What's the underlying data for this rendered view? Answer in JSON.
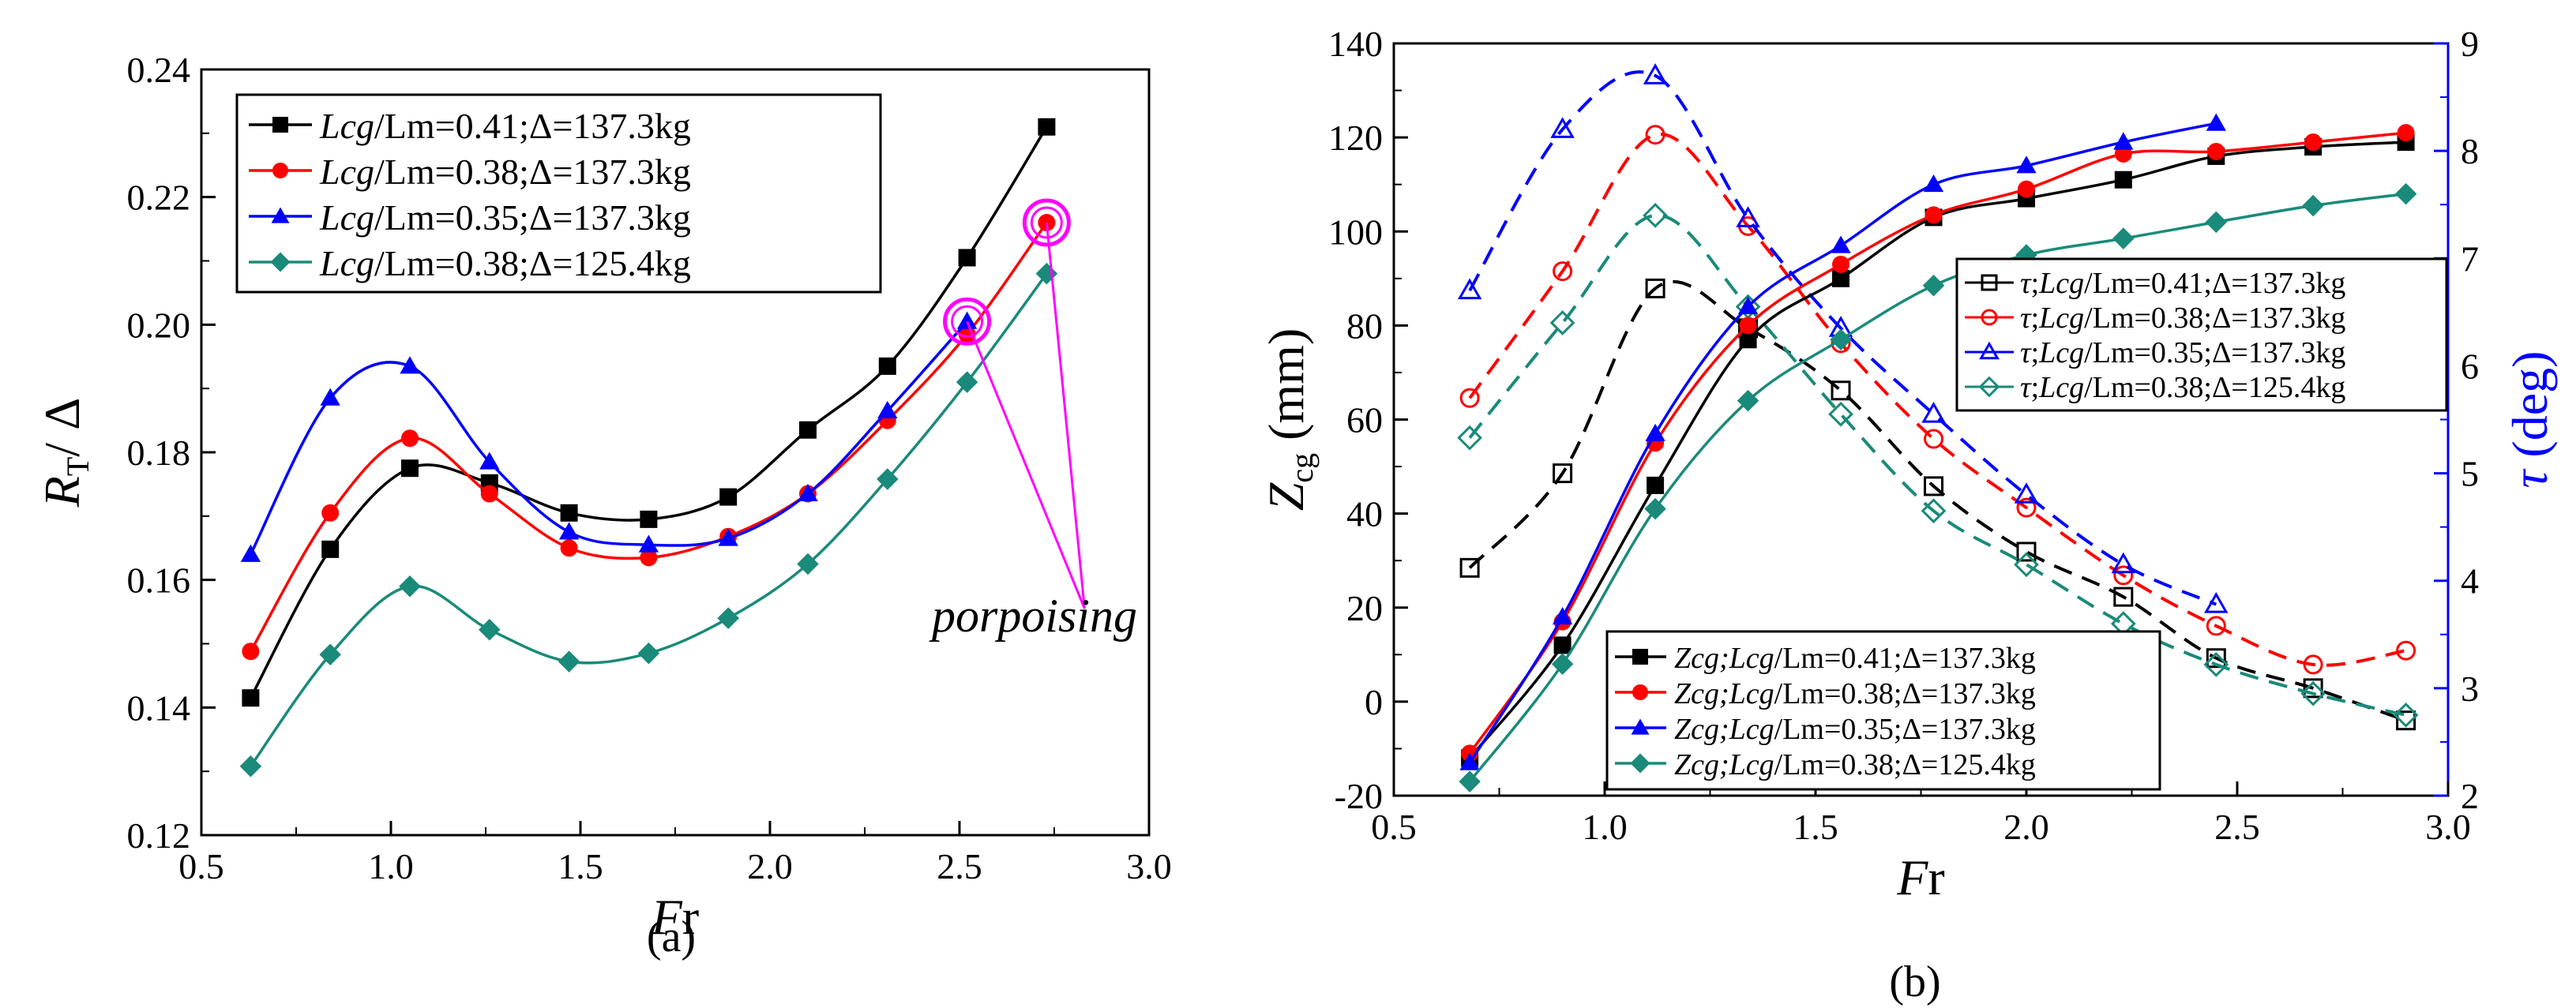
{
  "captions": {
    "a": "(a)",
    "b": "(b)"
  },
  "annotation": {
    "text": "porpoising",
    "color": "#ff00ff"
  },
  "colors": {
    "black": "#000000",
    "red": "#ff0000",
    "blue": "#0000ff",
    "teal": "#1a8a7a",
    "magenta": "#ff00ff"
  },
  "chart_data": [
    {
      "id": "a",
      "type": "line",
      "xlabel": {
        "italic": "F",
        "rest": "r"
      },
      "ylabel": {
        "italic": "R",
        "sub": "T",
        "rest": "/ Δ"
      },
      "xlim": [
        0.5,
        3.0
      ],
      "ylim": [
        0.12,
        0.24
      ],
      "xticks": [
        "0.5",
        "1.0",
        "1.5",
        "2.0",
        "2.5",
        "3.0"
      ],
      "yticks": [
        "0.12",
        "0.14",
        "0.16",
        "0.18",
        "0.20",
        "0.22",
        "0.24"
      ],
      "legend_position": "top-left",
      "series": [
        {
          "name": "Lcg/Lm=0.41;Δ=137.3kg",
          "label": {
            "italic": "Lcg",
            "rest": "/Lm=0.41;Δ=137.3kg"
          },
          "color": "#000000",
          "marker": "square",
          "x": [
            0.63,
            0.84,
            1.05,
            1.26,
            1.47,
            1.68,
            1.89,
            2.1,
            2.31,
            2.52,
            2.73
          ],
          "y": [
            0.1415,
            0.1648,
            0.1775,
            0.1752,
            0.1705,
            0.1695,
            0.173,
            0.1835,
            0.1935,
            0.2105,
            0.231
          ]
        },
        {
          "name": "Lcg/Lm=0.38;Δ=137.3kg",
          "label": {
            "italic": "Lcg",
            "rest": "/Lm=0.38;Δ=137.3kg"
          },
          "color": "#ff0000",
          "marker": "circle",
          "x": [
            0.63,
            0.84,
            1.05,
            1.26,
            1.47,
            1.68,
            1.89,
            2.1,
            2.31,
            2.52,
            2.73
          ],
          "y": [
            0.1488,
            0.1705,
            0.1822,
            0.1735,
            0.165,
            0.1635,
            0.1668,
            0.1735,
            0.185,
            0.1985,
            0.216
          ]
        },
        {
          "name": "Lcg/Lm=0.35;Δ=137.3kg",
          "label": {
            "italic": "Lcg",
            "rest": "/Lm=0.35;Δ=137.3kg"
          },
          "color": "#0000ff",
          "marker": "triangle",
          "x": [
            0.63,
            0.84,
            1.05,
            1.26,
            1.47,
            1.68,
            1.89,
            2.1,
            2.31,
            2.52
          ],
          "y": [
            0.164,
            0.1885,
            0.1935,
            0.1785,
            0.1675,
            0.1655,
            0.1665,
            0.1735,
            0.1865,
            0.2005
          ]
        },
        {
          "name": "Lcg/Lm=0.38;Δ=125.4kg",
          "label": {
            "italic": "Lcg",
            "rest": "/Lm=0.38;Δ=125.4kg"
          },
          "color": "#1a8a7a",
          "marker": "diamond",
          "x": [
            0.63,
            0.84,
            1.05,
            1.26,
            1.47,
            1.68,
            1.89,
            2.1,
            2.31,
            2.52,
            2.73
          ],
          "y": [
            0.1308,
            0.1483,
            0.159,
            0.1522,
            0.1472,
            0.1485,
            0.154,
            0.1625,
            0.1758,
            0.191,
            0.208
          ]
        }
      ],
      "porpoising_points": [
        {
          "x": 2.52,
          "y": 0.2005
        },
        {
          "x": 2.73,
          "y": 0.216
        }
      ],
      "annotation_anchor": {
        "x": 2.83,
        "y": 0.1555
      }
    },
    {
      "id": "b",
      "type": "line",
      "xlabel": {
        "italic": "F",
        "rest": "r"
      },
      "ylabel_left": {
        "italic": "Z",
        "sub": "cg",
        "rest": " (mm)"
      },
      "ylabel_right": {
        "italic": "τ",
        "rest": " (deg)"
      },
      "xlim": [
        0.5,
        3.0
      ],
      "ylim_left": [
        -20,
        140
      ],
      "ylim_right": [
        2,
        9
      ],
      "xticks": [
        "0.5",
        "1.0",
        "1.5",
        "2.0",
        "2.5",
        "3.0"
      ],
      "yticks_left": [
        "-20",
        "0",
        "20",
        "40",
        "60",
        "80",
        "100",
        "120",
        "140"
      ],
      "yticks_right": [
        "2",
        "3",
        "4",
        "5",
        "6",
        "7",
        "8",
        "9"
      ],
      "legend_tau_position": "right-middle",
      "legend_zcg_position": "bottom-center",
      "series_zcg": [
        {
          "name": "Zcg;Lcg/Lm=0.41;Δ=137.3kg",
          "label": {
            "pre": "Zcg;",
            "italic": "Lcg",
            "rest": "/Lm=0.41;Δ=137.3kg"
          },
          "color": "#000000",
          "marker": "square",
          "x": [
            0.68,
            0.9,
            1.12,
            1.34,
            1.56,
            1.78,
            2.0,
            2.23,
            2.45,
            2.68,
            2.9
          ],
          "y": [
            -12,
            12,
            46,
            77,
            90,
            103,
            107,
            111,
            116,
            118,
            119
          ]
        },
        {
          "name": "Zcg;Lcg/Lm=0.38;Δ=137.3kg",
          "label": {
            "pre": "Zcg;",
            "italic": "Lcg",
            "rest": "/Lm=0.38;Δ=137.3kg"
          },
          "color": "#ff0000",
          "marker": "circle",
          "x": [
            0.68,
            0.9,
            1.12,
            1.34,
            1.56,
            1.78,
            2.0,
            2.23,
            2.45,
            2.68,
            2.9
          ],
          "y": [
            -11,
            17,
            55,
            80,
            93,
            103.5,
            109,
            116.5,
            117,
            119,
            121
          ]
        },
        {
          "name": "Zcg;Lcg/Lm=0.35;Δ=137.3kg",
          "label": {
            "pre": "Zcg;",
            "italic": "Lcg",
            "rest": "/Lm=0.35;Δ=137.3kg"
          },
          "color": "#0000ff",
          "marker": "triangle",
          "x": [
            0.68,
            0.9,
            1.12,
            1.34,
            1.56,
            1.78,
            2.0,
            2.23,
            2.45
          ],
          "y": [
            -13,
            18,
            57,
            84,
            97,
            110,
            114,
            119,
            123
          ]
        },
        {
          "name": "Zcg;Lcg/Lm=0.38;Δ=125.4kg",
          "label": {
            "pre": "Zcg;",
            "italic": "Lcg",
            "rest": "/Lm=0.38;Δ=125.4kg"
          },
          "color": "#1a8a7a",
          "marker": "diamond",
          "x": [
            0.68,
            0.9,
            1.12,
            1.34,
            1.56,
            1.78,
            2.0,
            2.23,
            2.45,
            2.68,
            2.9
          ],
          "y": [
            -17,
            8,
            41,
            64,
            77,
            88.5,
            95,
            98.5,
            102,
            105.5,
            108
          ]
        }
      ],
      "series_tau": [
        {
          "name": "τ;Lcg/Lm=0.41;Δ=137.3kg",
          "label": {
            "pre": "τ",
            "italic": "Lcg",
            "rest": "/Lm=0.41;Δ=137.3kg"
          },
          "color": "#000000",
          "marker": "square-open",
          "x": [
            0.68,
            0.9,
            1.12,
            1.34,
            1.56,
            1.78,
            2.0,
            2.23,
            2.45,
            2.68,
            2.9
          ],
          "y": [
            4.12,
            5.0,
            6.72,
            6.35,
            5.77,
            4.88,
            4.27,
            3.85,
            3.28,
            3.0,
            2.7
          ]
        },
        {
          "name": "τ;Lcg/Lm=0.38;Δ=137.3kg",
          "label": {
            "pre": "τ",
            "italic": "Lcg",
            "rest": "/Lm=0.38;Δ=137.3kg"
          },
          "color": "#ff0000",
          "marker": "circle-open",
          "x": [
            0.68,
            0.9,
            1.12,
            1.34,
            1.56,
            1.78,
            2.0,
            2.23,
            2.45,
            2.68,
            2.9
          ],
          "y": [
            5.7,
            6.88,
            8.15,
            7.3,
            6.21,
            5.32,
            4.68,
            4.05,
            3.58,
            3.22,
            3.35
          ]
        },
        {
          "name": "τ;Lcg/Lm=0.35;Δ=137.3kg",
          "label": {
            "pre": "τ",
            "italic": "Lcg",
            "rest": "/Lm=0.35;Δ=137.3kg"
          },
          "color": "#0000ff",
          "marker": "triangle-open",
          "x": [
            0.68,
            0.9,
            1.12,
            1.34,
            1.56,
            1.78,
            2.0,
            2.23,
            2.45
          ],
          "y": [
            6.7,
            8.2,
            8.7,
            7.37,
            6.35,
            5.55,
            4.8,
            4.15,
            3.78
          ]
        },
        {
          "name": "τ;Lcg/Lm=0.38;Δ=125.4kg",
          "label": {
            "pre": "τ",
            "italic": "Lcg",
            "rest": "/Lm=0.38;Δ=125.4kg"
          },
          "color": "#1a8a7a",
          "marker": "diamond-open",
          "x": [
            0.68,
            0.9,
            1.12,
            1.34,
            1.56,
            1.78,
            2.0,
            2.23,
            2.45,
            2.68,
            2.9
          ],
          "y": [
            5.33,
            6.4,
            7.4,
            6.55,
            5.55,
            4.65,
            4.15,
            3.6,
            3.22,
            2.95,
            2.75
          ]
        }
      ]
    }
  ]
}
